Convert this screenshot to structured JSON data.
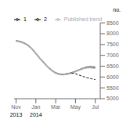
{
  "chart_data": {
    "type": "line",
    "y_label": "no.",
    "annotations": [
      "2013",
      "2014"
    ],
    "xlim": [
      -0.2,
      8.5
    ],
    "xticks": [
      {
        "value": 0,
        "label": "Nov"
      },
      {
        "value": 2,
        "label": "Jan"
      },
      {
        "value": 4,
        "label": "Mar"
      },
      {
        "value": 6,
        "label": "May"
      },
      {
        "value": 8,
        "label": "Jul"
      }
    ],
    "ylim": [
      5000,
      8500
    ],
    "yticks": [
      5000,
      5500,
      6000,
      6500,
      7000,
      7500,
      8000,
      8500
    ],
    "grid": false,
    "legend": "upper left",
    "series": [
      {
        "name": "1",
        "color": "#000000",
        "line_style": "solid",
        "x": [
          0,
          0.4,
          0.8,
          1.2,
          1.6,
          2.0,
          2.4,
          2.8,
          3.2,
          3.6,
          4.0,
          4.4,
          4.8,
          5.2,
          5.6,
          6.0,
          6.4,
          6.8,
          7.2,
          7.6,
          8.0
        ],
        "values": [
          7680,
          7650,
          7580,
          7480,
          7320,
          7100,
          6880,
          6680,
          6480,
          6320,
          6200,
          6140,
          6130,
          6160,
          6200,
          6270,
          6350,
          6420,
          6470,
          6480,
          6450
        ]
      },
      {
        "name": "Published trend",
        "color": "#aaaaaa",
        "line_style": "solid",
        "x": [
          0,
          0.4,
          0.8,
          1.2,
          1.6,
          2.0,
          2.4,
          2.8,
          3.2,
          3.6,
          4.0,
          4.4,
          4.8,
          5.2,
          5.6,
          6.0,
          6.4,
          6.8,
          7.2,
          7.6,
          8.0
        ],
        "values": [
          7660,
          7630,
          7560,
          7460,
          7300,
          7080,
          6860,
          6660,
          6460,
          6300,
          6180,
          6120,
          6110,
          6140,
          6180,
          6250,
          6330,
          6400,
          6440,
          6440,
          6410
        ]
      },
      {
        "name": "2",
        "color": "#000000",
        "line_style": "dashed",
        "x": [
          5.6,
          6.0,
          6.4,
          6.8,
          7.2,
          7.6,
          8.0
        ],
        "values": [
          6180,
          6150,
          6080,
          6020,
          5960,
          5920,
          5880
        ]
      }
    ]
  }
}
